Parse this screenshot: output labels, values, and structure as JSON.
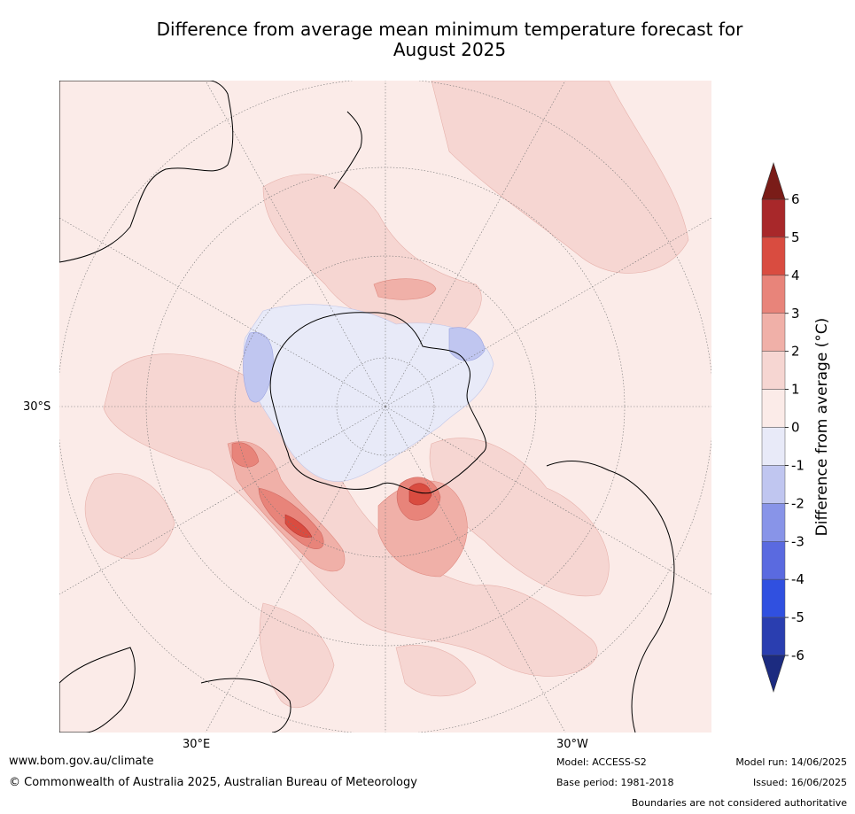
{
  "title": {
    "line1": "Difference from average mean minimum temperature forecast for",
    "line2": "August 2025"
  },
  "map": {
    "projection": "south-polar-stereographic",
    "lat_label": "30°S",
    "lon_labels": [
      "30°E",
      "30°W"
    ],
    "background_color": "#fbebe8"
  },
  "colorbar": {
    "label": "Difference from average (°C)",
    "ticks": [
      "6",
      "5",
      "4",
      "3",
      "2",
      "1",
      "0",
      "-1",
      "-2",
      "-3",
      "-4",
      "-5",
      "-6"
    ],
    "over_color": "#7a1c18",
    "under_color": "#1c2b80",
    "bins": [
      {
        "range": "5 to 6",
        "color": "#a8282a"
      },
      {
        "range": "4 to 5",
        "color": "#d94c40"
      },
      {
        "range": "3 to 4",
        "color": "#e8847a"
      },
      {
        "range": "2 to 3",
        "color": "#f0b0a8"
      },
      {
        "range": "1 to 2",
        "color": "#f6d6d2"
      },
      {
        "range": "0 to 1",
        "color": "#fbebe8"
      },
      {
        "range": "-1 to 0",
        "color": "#e8eaf8"
      },
      {
        "range": "-2 to -1",
        "color": "#c0c6f0"
      },
      {
        "range": "-3 to -2",
        "color": "#8894e8"
      },
      {
        "range": "-4 to -3",
        "color": "#5a6ae0"
      },
      {
        "range": "-5 to -4",
        "color": "#3050e0"
      },
      {
        "range": "-6 to -5",
        "color": "#2a3eb0"
      }
    ]
  },
  "footer": {
    "website": "www.bom.gov.au/climate",
    "copyright": "© Commonwealth of Australia 2025, Australian Bureau of Meteorology",
    "model": "Model: ACCESS-S2",
    "base_period": "Base period: 1981-2018",
    "model_run": "Model run: 14/06/2025",
    "issued": "Issued: 16/06/2025",
    "disclaimer": "Boundaries are not considered authoritative"
  }
}
